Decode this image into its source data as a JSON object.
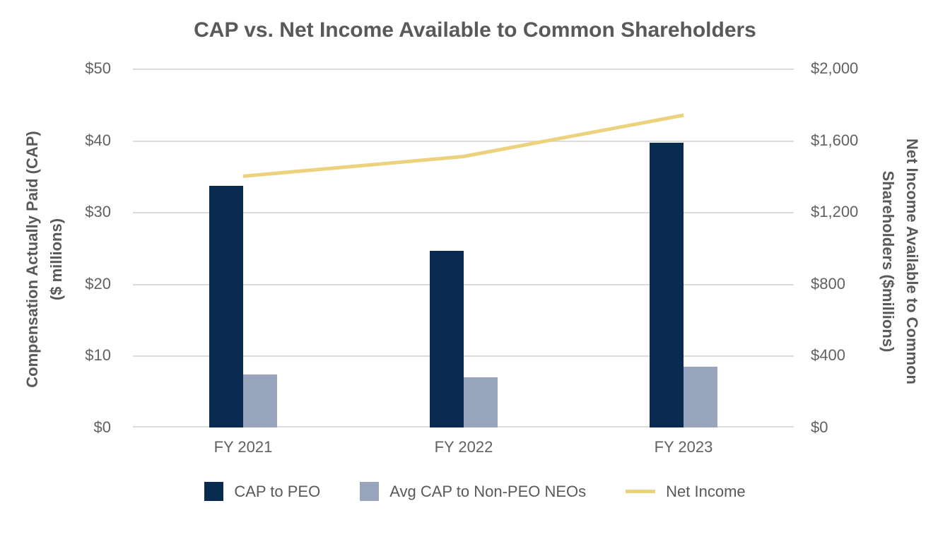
{
  "title": "CAP vs. Net Income Available to Common Shareholders",
  "colors": {
    "cap_peo": "#0a2b50",
    "cap_non_peo": "#98a4bc",
    "net_income": "#ecd27c",
    "gridline": "#dcdcdc",
    "text_dark": "#58595b",
    "text_tick": "#616161"
  },
  "chart_data": {
    "type": "combo-bar-line",
    "title": "CAP vs. Net Income Available to Common Shareholders",
    "categories": [
      "FY 2021",
      "FY 2022",
      "FY 2023"
    ],
    "series": [
      {
        "name": "CAP to PEO",
        "type": "bar",
        "axis": "left",
        "color": "#0a2b50",
        "values": [
          33.7,
          24.6,
          39.7
        ]
      },
      {
        "name": "Avg CAP to Non-PEO NEOs",
        "type": "bar",
        "axis": "left",
        "color": "#98a4bc",
        "values": [
          7.4,
          7.0,
          8.5
        ]
      },
      {
        "name": "Net Income",
        "type": "line",
        "axis": "right",
        "color": "#ecd27c",
        "values": [
          1400,
          1510,
          1740
        ]
      }
    ],
    "left_axis": {
      "title_line1": "Compensation Actually Paid (CAP)",
      "title_line2": "($ millions)",
      "min": 0,
      "max": 50,
      "tick_step": 10,
      "tick_labels_top_down": [
        "$50",
        "$40",
        "$30",
        "$20",
        "$10",
        "$0"
      ]
    },
    "right_axis": {
      "title_line1": "Net Income Available to Common",
      "title_line2": "Shareholders ($millions)",
      "min": 0,
      "max": 2000,
      "tick_step": 400,
      "tick_labels_top_down": [
        "$2,000",
        "$1,600",
        "$1,200",
        "$800",
        "$400",
        "$0"
      ]
    },
    "grid": true,
    "legend_position": "bottom"
  },
  "legend": {
    "items": [
      {
        "label": "CAP to PEO"
      },
      {
        "label": "Avg CAP to Non-PEO NEOs"
      },
      {
        "label": "Net Income"
      }
    ]
  }
}
